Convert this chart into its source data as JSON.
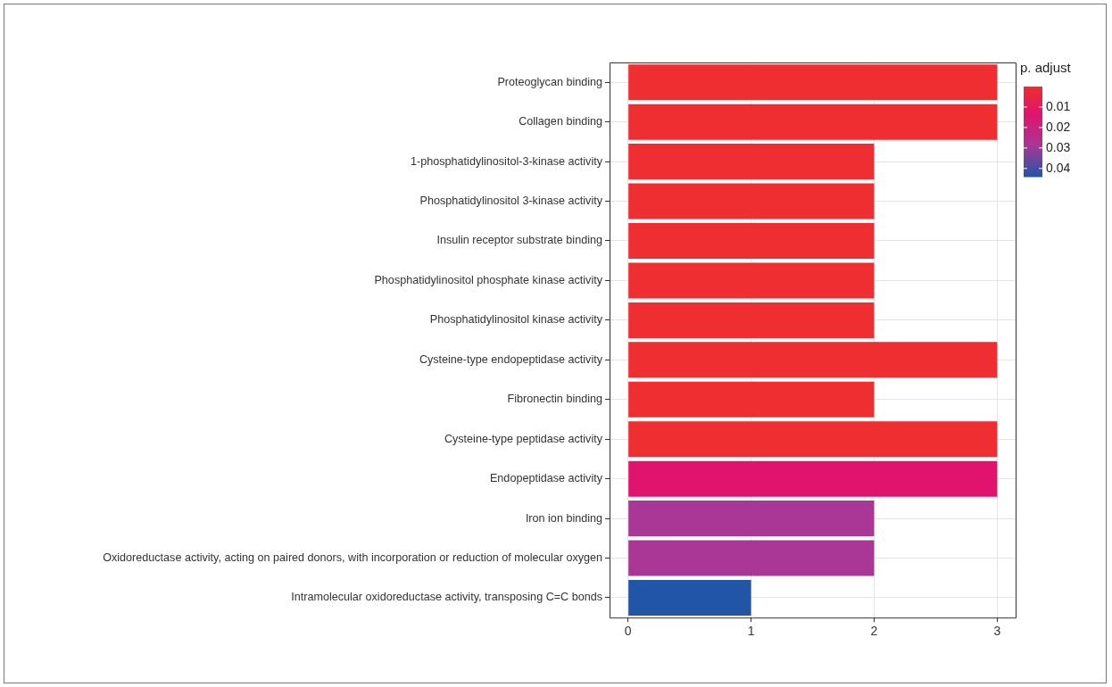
{
  "chart_data": {
    "type": "bar",
    "orientation": "horizontal",
    "clabel": "p. adjust",
    "categories": [
      "Proteoglycan binding",
      "Collagen binding",
      "1-phosphatidylinositol-3-kinase activity",
      "Phosphatidylinositol 3-kinase activity",
      "Insulin receptor substrate binding",
      "Phosphatidylinositol phosphate kinase activity",
      "Phosphatidylinositol kinase activity",
      "Cysteine-type endopeptidase activity",
      "Fibronectin binding",
      "Cysteine-type peptidase activity",
      "Endopeptidase activity",
      "Iron ion binding",
      "Oxidoreductase activity, acting on paired donors, with incorporation or reduction of molecular oxygen",
      "Intramolecular oxidoreductase activity, transposing C=C bonds"
    ],
    "values": [
      3,
      3,
      2,
      2,
      2,
      2,
      2,
      3,
      2,
      3,
      3,
      2,
      2,
      1
    ],
    "colors": [
      "#ee2e31",
      "#ee2e31",
      "#ee2e31",
      "#ee2e31",
      "#ee2e31",
      "#ee2e31",
      "#ee2e31",
      "#ee2e31",
      "#ee2e31",
      "#ee2e31",
      "#e0146c",
      "#a83795",
      "#a83795",
      "#2155a5"
    ],
    "xlim": [
      -0.15,
      3.15
    ],
    "xticks": [
      0,
      1,
      2,
      3
    ],
    "grid": true,
    "clim": [
      0.0,
      0.044
    ],
    "cticks": [
      0.01,
      0.02,
      0.03,
      0.04
    ]
  }
}
